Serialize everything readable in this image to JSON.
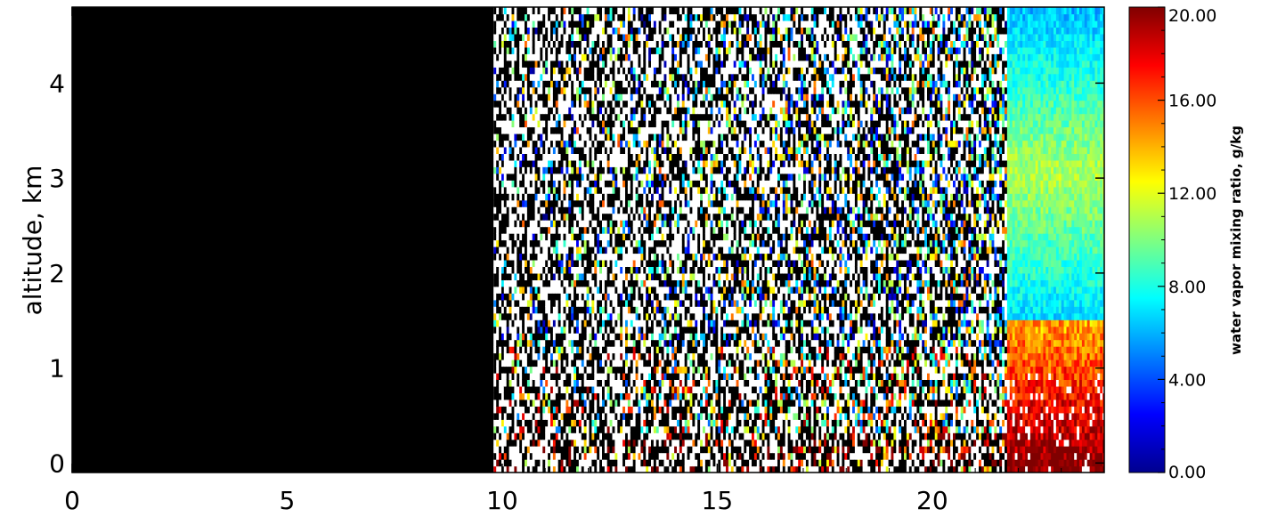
{
  "chart_data": {
    "type": "heatmap",
    "title": "",
    "xlabel": "",
    "ylabel": "altitude, km",
    "xlim": [
      0,
      24
    ],
    "ylim": [
      -0.1,
      4.8
    ],
    "x_ticks": [
      0,
      5,
      10,
      15,
      20
    ],
    "x_tick_labels": [
      "0",
      "5",
      "10",
      "15",
      "20"
    ],
    "y_ticks": [
      0,
      1,
      2,
      3,
      4
    ],
    "y_tick_labels": [
      "0",
      "1",
      "2",
      "3",
      "4"
    ],
    "grid": false,
    "colorbar": {
      "label": "water vapor mixing ratio, g/kg",
      "range": [
        0,
        20
      ],
      "ticks": [
        0,
        4,
        8,
        12,
        16,
        20
      ],
      "tick_labels": [
        "0.00",
        "4.00",
        "8.00",
        "12.00",
        "16.00",
        "20.00"
      ],
      "colormap": "jet"
    },
    "regions": [
      {
        "x_range": [
          0,
          9.8
        ],
        "description": "no data",
        "color": "#000000"
      },
      {
        "x_range": [
          9.8,
          21.7
        ],
        "description": "noisy retrievals (mixed white/black/colored pixels)"
      },
      {
        "x_range": [
          21.7,
          24
        ],
        "y_range": [
          1.5,
          4.8
        ],
        "value_range": [
          6,
          11
        ],
        "description": "moist layer aloft"
      },
      {
        "x_range": [
          21.7,
          24
        ],
        "y_range": [
          -0.1,
          1.5
        ],
        "value_range": [
          14,
          20
        ],
        "description": "boundary layer high mixing ratio"
      }
    ],
    "colors": {
      "background": "#ffffff",
      "no_data": "#000000",
      "axes": "#000000"
    }
  }
}
